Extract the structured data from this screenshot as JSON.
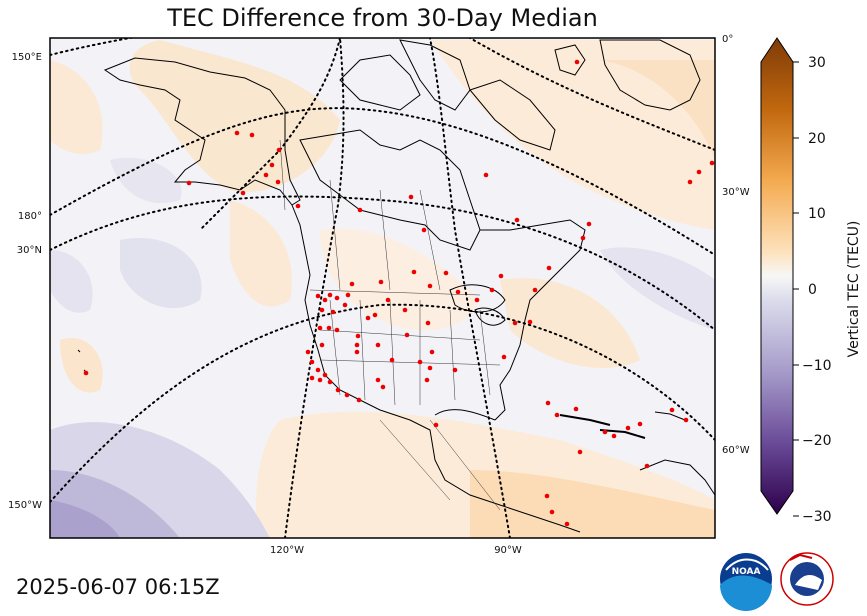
{
  "title": "TEC Difference from 30-Day Median",
  "timestamp": "2025-06-07 06:15Z",
  "colorbar": {
    "label": "Vertical TEC (TECU)",
    "ticks": [
      "30",
      "20",
      "10",
      "0",
      "−10",
      "−20",
      "−30"
    ],
    "range": [
      -30,
      30
    ],
    "positive_color": "#7f3b08",
    "negative_color": "#2d004b",
    "zero_color": "#f7f7f7"
  },
  "graticule": {
    "left_labels": [
      "150°E",
      "180°",
      "30°N",
      "150°W"
    ],
    "right_labels": [
      "0°",
      "30°W",
      "60°W"
    ],
    "bottom_labels": [
      "120°W",
      "90°W"
    ]
  },
  "logos": {
    "noaa": "NOAA",
    "nws": "NATIONAL WEATHER SERVICE"
  },
  "station_color": "#ee0000"
}
